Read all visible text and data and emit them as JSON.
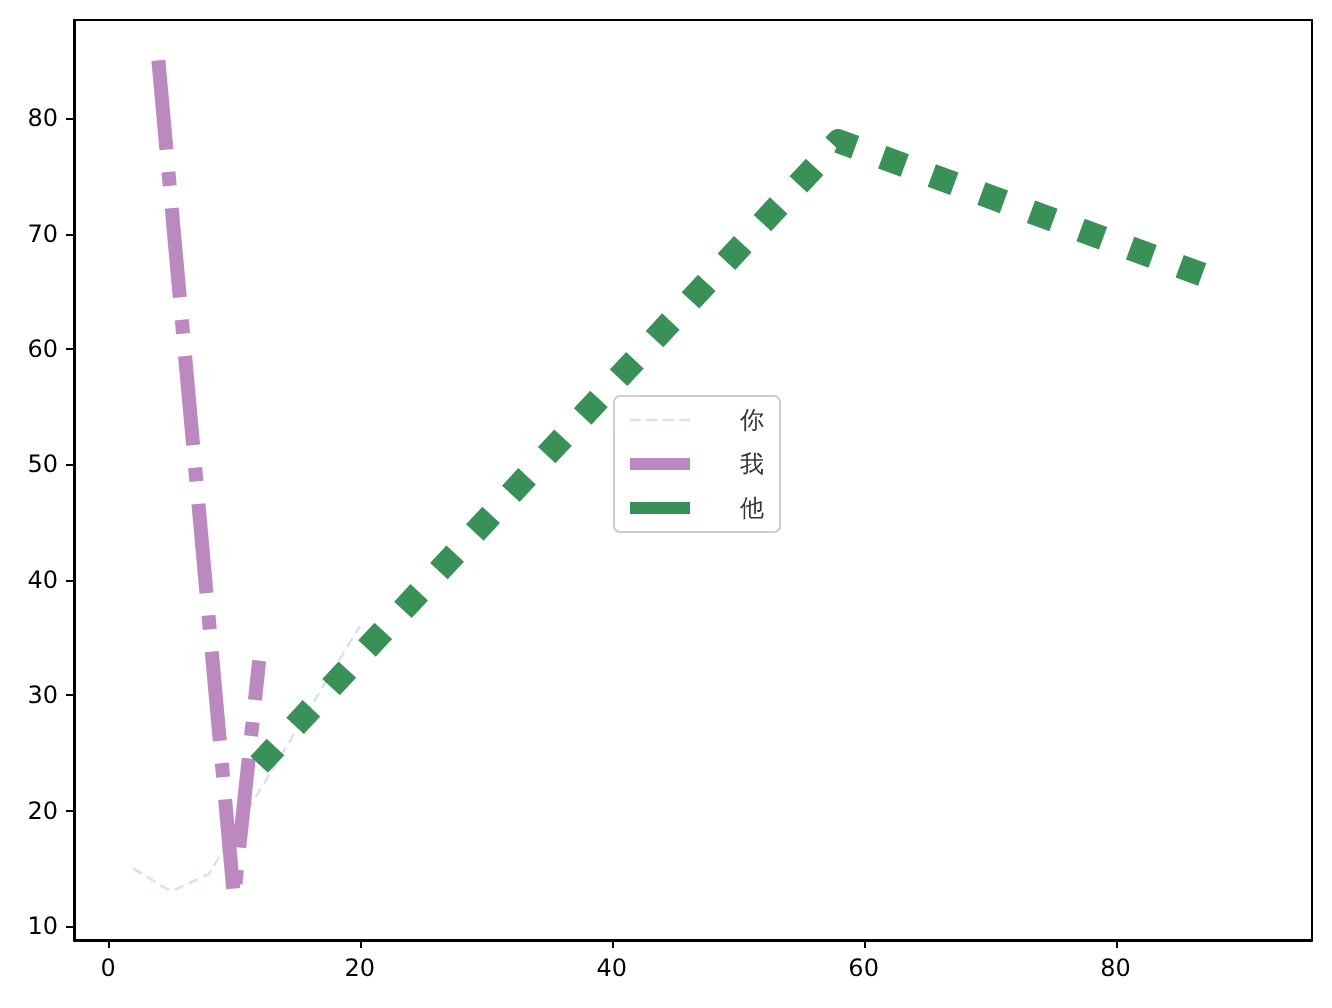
{
  "chart_data": {
    "type": "line",
    "xlim": [
      -2.7,
      95.6
    ],
    "ylim": [
      8.8,
      88.5
    ],
    "xticks": [
      0,
      20,
      40,
      60,
      80
    ],
    "yticks": [
      10,
      20,
      30,
      40,
      50,
      60,
      70,
      80
    ],
    "grid": false,
    "legend": "center",
    "marker": "none",
    "series": [
      {
        "name": "你",
        "color": "#d3e6e1",
        "line_style": "dashed",
        "x": [
          2,
          5,
          8,
          20
        ],
        "values": [
          15,
          13,
          14.5,
          36
        ]
      },
      {
        "name": "我",
        "color": "#bb88c0",
        "line_style": "dashdot",
        "x": [
          4,
          10,
          12
        ],
        "values": [
          85,
          12.5,
          33
        ]
      },
      {
        "name": "他",
        "color": "#3a9157",
        "line_style": "dotted",
        "x": [
          12,
          58,
          88
        ],
        "values": [
          24,
          78,
          66
        ]
      }
    ]
  }
}
